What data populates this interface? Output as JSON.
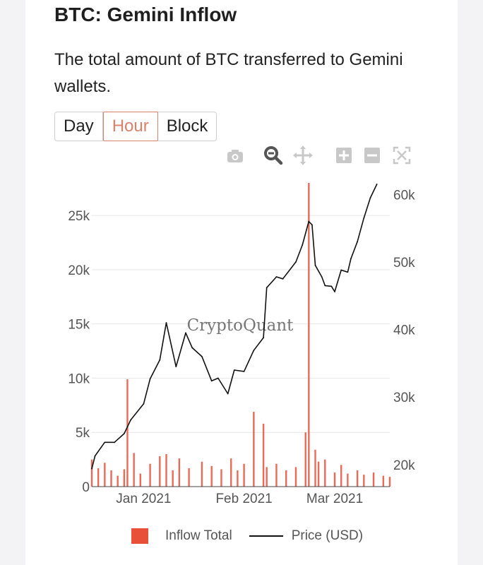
{
  "header": {
    "title": "BTC: Gemini Inflow",
    "description": "The total amount of BTC transferred to Gemini wallets."
  },
  "tabs": [
    {
      "label": "Day",
      "active": false
    },
    {
      "label": "Hour",
      "active": true
    },
    {
      "label": "Block",
      "active": false
    }
  ],
  "toolbar": [
    "camera-icon",
    "zoom-icon",
    "pan-icon",
    "zoom-in-icon",
    "zoom-out-icon",
    "autoscale-icon"
  ],
  "watermark": "CryptoQuant",
  "colors": {
    "inflow": "#e8503a",
    "price": "#111111",
    "accent": "#d9826a"
  },
  "chart_data": {
    "type": "bar+line",
    "x_ticks": [
      "Jan 2021",
      "Feb 2021",
      "Mar 2021"
    ],
    "x_domain": [
      "2020-12-16",
      "2021-03-18"
    ],
    "y_left": {
      "ticks": [
        "0",
        "5k",
        "10k",
        "15k",
        "20k",
        "25k"
      ],
      "range": [
        0,
        28000
      ]
    },
    "y_right": {
      "ticks": [
        "20k",
        "30k",
        "40k",
        "50k",
        "60k"
      ],
      "range": [
        16750,
        61700
      ]
    },
    "legend": {
      "position": "bottom",
      "entries": [
        "Inflow Total",
        "Price (USD)"
      ]
    },
    "series": [
      {
        "name": "Inflow Total",
        "type": "bar",
        "axis": "left",
        "x": [
          "2020-12-16",
          "2020-12-18",
          "2020-12-20",
          "2020-12-22",
          "2020-12-24",
          "2020-12-26",
          "2020-12-27",
          "2020-12-29",
          "2020-12-31",
          "2021-01-03",
          "2021-01-06",
          "2021-01-08",
          "2021-01-10",
          "2021-01-12",
          "2021-01-15",
          "2021-01-19",
          "2021-01-22",
          "2021-01-25",
          "2021-01-28",
          "2021-01-30",
          "2021-02-01",
          "2021-02-04",
          "2021-02-07",
          "2021-02-08",
          "2021-02-11",
          "2021-02-14",
          "2021-02-17",
          "2021-02-20",
          "2021-02-21",
          "2021-02-23",
          "2021-02-24",
          "2021-02-26",
          "2021-03-01",
          "2021-03-03",
          "2021-03-05",
          "2021-03-08",
          "2021-03-10",
          "2021-03-13",
          "2021-03-16",
          "2021-03-18"
        ],
        "values": [
          2500,
          1700,
          2200,
          1500,
          1000,
          1600,
          9900,
          3100,
          1200,
          2100,
          2800,
          3000,
          1500,
          2600,
          1700,
          2300,
          1900,
          1600,
          2600,
          1500,
          2100,
          6900,
          5800,
          1800,
          2100,
          1500,
          1800,
          5000,
          28000,
          3400,
          2300,
          2500,
          1300,
          2000,
          1200,
          1500,
          1100,
          1300,
          1000,
          900
        ]
      },
      {
        "name": "Price (USD)",
        "type": "line",
        "axis": "right",
        "x": [
          "2020-12-16",
          "2020-12-17",
          "2020-12-20",
          "2020-12-23",
          "2020-12-26",
          "2020-12-28",
          "2021-01-01",
          "2021-01-03",
          "2021-01-06",
          "2021-01-08",
          "2021-01-11",
          "2021-01-14",
          "2021-01-16",
          "2021-01-19",
          "2021-01-22",
          "2021-01-24",
          "2021-01-27",
          "2021-01-29",
          "2021-02-01",
          "2021-02-04",
          "2021-02-07",
          "2021-02-08",
          "2021-02-11",
          "2021-02-13",
          "2021-02-17",
          "2021-02-19",
          "2021-02-21",
          "2021-02-22",
          "2021-02-23",
          "2021-02-25",
          "2021-02-26",
          "2021-02-28",
          "2021-03-01",
          "2021-03-03",
          "2021-03-05",
          "2021-03-06",
          "2021-03-08",
          "2021-03-10",
          "2021-03-12",
          "2021-03-14"
        ],
        "values": [
          19400,
          21300,
          23300,
          23300,
          24600,
          26600,
          29000,
          32700,
          35500,
          41000,
          34500,
          39500,
          37300,
          36000,
          32400,
          32800,
          30500,
          34000,
          33800,
          36900,
          38800,
          46200,
          47800,
          47500,
          50000,
          52500,
          56000,
          55500,
          49500,
          47800,
          46500,
          46400,
          45600,
          48800,
          48500,
          50500,
          53000,
          56500,
          59500,
          61500
        ]
      }
    ]
  }
}
